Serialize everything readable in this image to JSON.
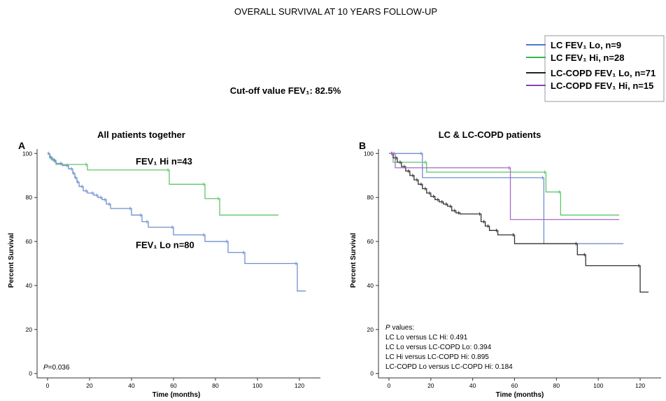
{
  "figure": {
    "title": "OVERALL SURVIVAL AT 10 YEARS FOLLOW-UP",
    "subtitle": "Cut-off  value FEV₁: 82.5%"
  },
  "legend": [
    {
      "label": "LC FEV₁ Lo, n=9",
      "color": "#4a78c9"
    },
    {
      "label": "LC FEV₁ Hi, n=28",
      "color": "#32b84a"
    },
    {
      "label": "LC-COPD FEV₁ Lo, n=71",
      "color": "#222222"
    },
    {
      "label": "LC-COPD FEV₁ Hi, n=15",
      "color": "#8e3fb5"
    }
  ],
  "chart_data": [
    {
      "type": "line",
      "step": true,
      "panel_letter": "A",
      "title": "All patients together",
      "xlabel": "Time (months)",
      "ylabel": "Percent Survival",
      "xlim": [
        -5,
        130
      ],
      "ylim": [
        -2,
        102
      ],
      "xticks": [
        0,
        20,
        40,
        60,
        80,
        100,
        120
      ],
      "yticks": [
        0,
        20,
        40,
        60,
        80,
        100
      ],
      "grid": false,
      "annotations": [
        {
          "text": "FEV₁ Hi n=43",
          "x": 42,
          "y": 95
        },
        {
          "text": "FEV₁ Lo n=80",
          "x": 42,
          "y": 57
        }
      ],
      "pvalue_text": "P=0.036",
      "series": [
        {
          "name": "FEV₁ Hi n=43",
          "color": "#5cc76b",
          "x": [
            0,
            1,
            2,
            4,
            19,
            58,
            75,
            82,
            110
          ],
          "y": [
            100,
            98,
            97,
            95,
            92.5,
            86,
            79.5,
            72,
            72
          ]
        },
        {
          "name": "FEV₁ Lo n=80",
          "color": "#6f8fd0",
          "x": [
            0,
            1,
            2,
            3,
            4,
            7,
            10,
            12,
            13,
            14,
            15,
            17,
            19,
            22,
            24,
            26,
            28,
            30,
            40,
            45,
            48,
            60,
            75,
            86,
            94,
            119,
            123
          ],
          "y": [
            100,
            98.5,
            97.5,
            96.5,
            95.5,
            94.5,
            93,
            91,
            89,
            87,
            85,
            83,
            82,
            81,
            80,
            79,
            77,
            75,
            72,
            69,
            66.5,
            63,
            60,
            55,
            50,
            37.5,
            37.5
          ]
        }
      ]
    },
    {
      "type": "line",
      "step": true,
      "panel_letter": "B",
      "title": "LC & LC-COPD patients",
      "xlabel": "Time (months)",
      "ylabel": "Percent Survival",
      "xlim": [
        -5,
        130
      ],
      "ylim": [
        -2,
        102
      ],
      "xticks": [
        0,
        20,
        40,
        60,
        80,
        100,
        120
      ],
      "yticks": [
        0,
        20,
        40,
        60,
        80,
        100
      ],
      "grid": false,
      "pvalues": {
        "heading_p": "P",
        "heading_rest": " values:",
        "lines": [
          "LC Lo versus LC Hi: 0.491",
          "LC Lo versus LC-COPD Lo: 0.394",
          "LC Hi versus  LC-COPD Hi: 0.895",
          "LC-COPD  Lo versus LC-COPD Hi: 0.184"
        ]
      },
      "series": [
        {
          "name": "LC FEV₁ Lo, n=9",
          "color": "#6f8fd0",
          "x": [
            0,
            16,
            74,
            112
          ],
          "y": [
            100,
            89,
            59,
            59
          ]
        },
        {
          "name": "LC FEV₁ Hi, n=28",
          "color": "#5cc76b",
          "x": [
            0,
            2,
            18,
            75,
            82,
            110
          ],
          "y": [
            100,
            96,
            91.5,
            82.5,
            72,
            72
          ]
        },
        {
          "name": "LC-COPD FEV₁ Lo, n=71",
          "color": "#333333",
          "x": [
            0,
            2,
            4,
            6,
            8,
            10,
            12,
            14,
            16,
            18,
            20,
            22,
            24,
            26,
            28,
            30,
            32,
            34,
            44,
            46,
            48,
            52,
            60,
            90,
            94,
            120,
            124
          ],
          "y": [
            100,
            98,
            96,
            94,
            92,
            90,
            88,
            86,
            84,
            82,
            80.5,
            79,
            78,
            77,
            76,
            74,
            73,
            72.5,
            69,
            67,
            65,
            63,
            59,
            54,
            49,
            37,
            37
          ]
        },
        {
          "name": "LC-COPD FEV₁ Hi, n=15",
          "color": "#a86bc7",
          "x": [
            0,
            3,
            58,
            110
          ],
          "y": [
            100,
            93.5,
            70,
            70
          ]
        }
      ]
    }
  ]
}
